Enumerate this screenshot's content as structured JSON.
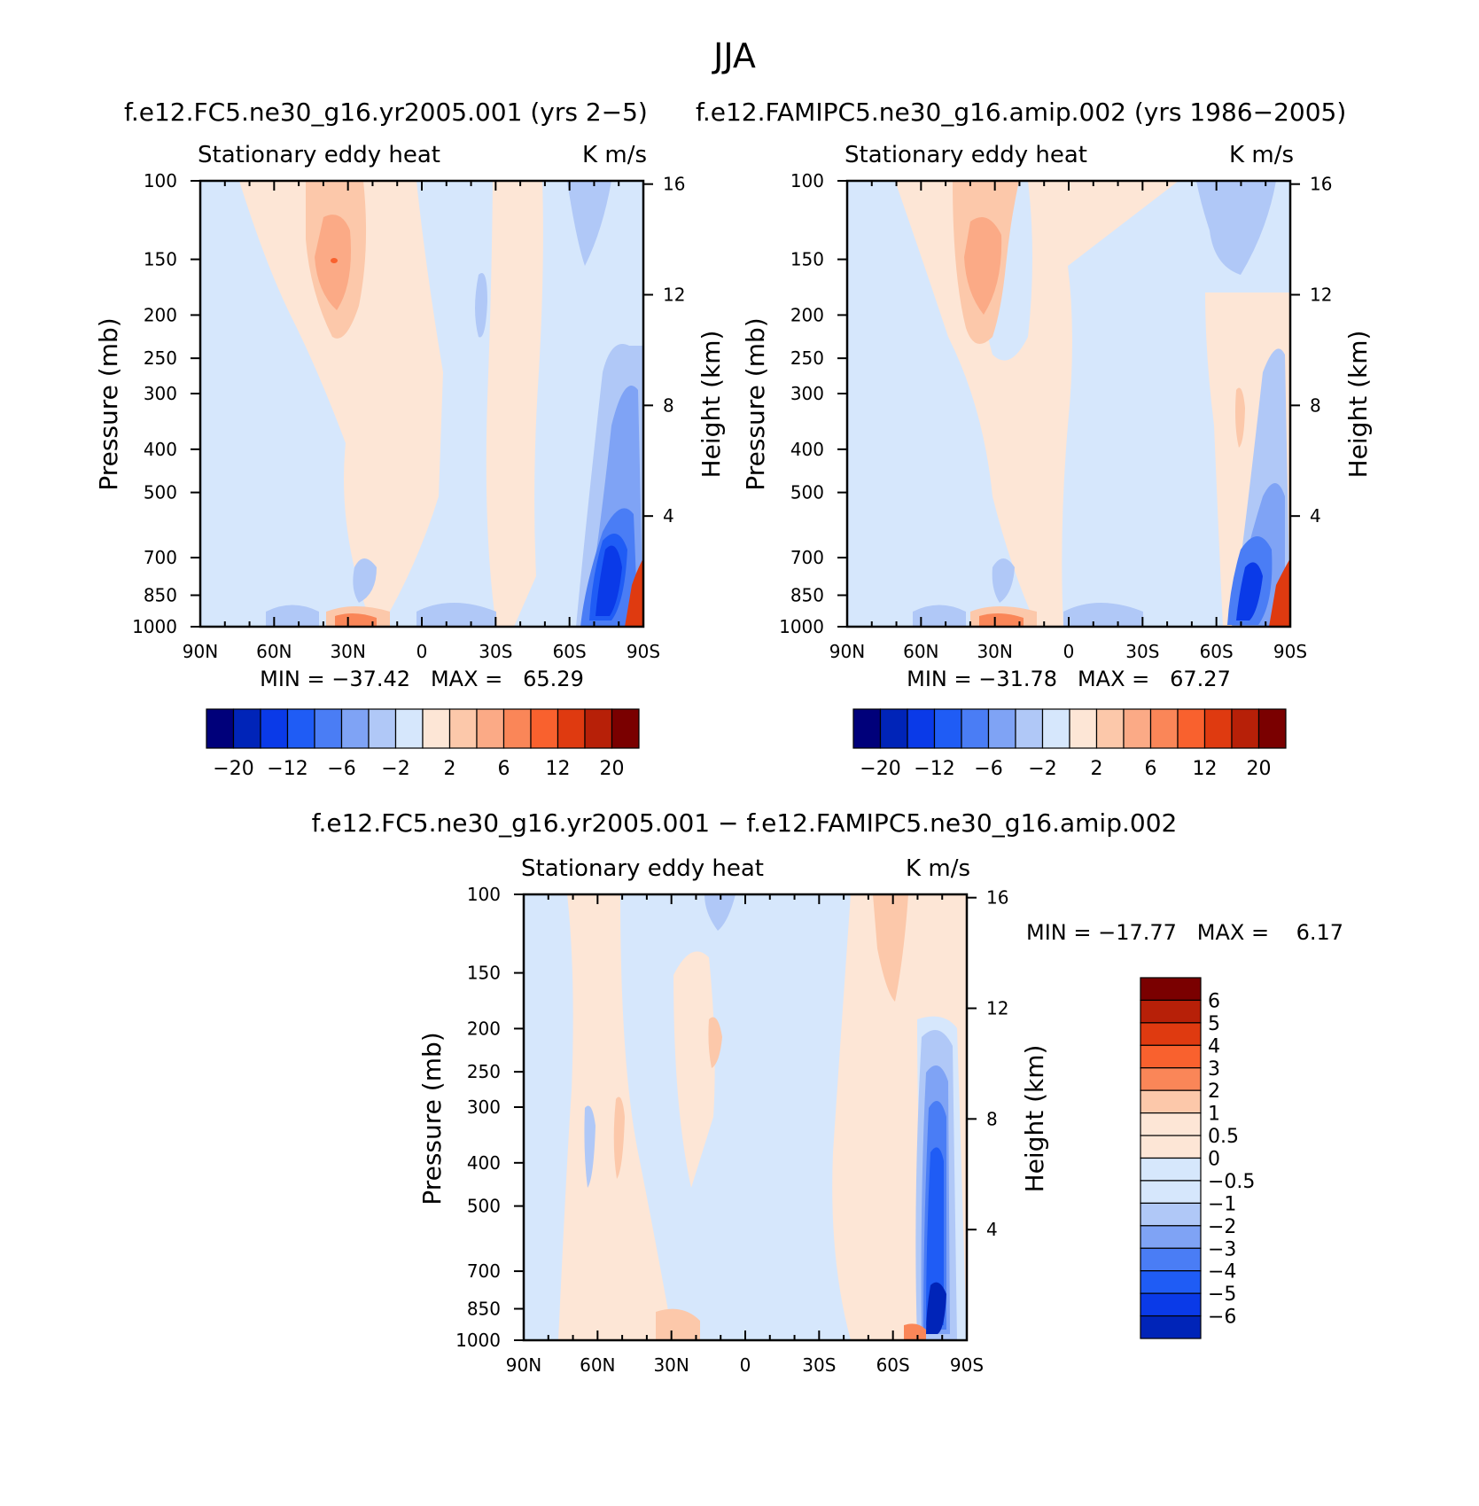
{
  "figure": {
    "title": "JJA",
    "field_name": "Stationary eddy heat",
    "units": "K m/s"
  },
  "colors": {
    "blue_red_16": [
      "#00007a",
      "#0024b8",
      "#0a3ae8",
      "#1f5cf5",
      "#4a7df5",
      "#7fa3f5",
      "#b0c8f7",
      "#d6e7fc",
      "#fde6d6",
      "#fcc8aa",
      "#fbaa86",
      "#fa8658",
      "#f9612e",
      "#df3a10",
      "#b72008",
      "#7a0000"
    ],
    "diff_14": [
      "#00007a",
      "#0024b8",
      "#0a3ae8",
      "#1f5cf5",
      "#4a7df5",
      "#7fa3f5",
      "#b0c8f7",
      "#d6e7fc",
      "#fde6d6",
      "#fcc8aa",
      "#fa8658",
      "#f9612e",
      "#df3a10",
      "#b72008",
      "#7a0000"
    ]
  },
  "chart_data": [
    {
      "type": "heatmap",
      "title": "f.e12.FC5.ne30_g16.yr2005.001 (yrs 2−5)",
      "field": "Stationary eddy heat",
      "units": "K m/s",
      "xlabel": "",
      "ylabel": "Pressure (mb)",
      "y2label": "Height (km)",
      "x_ticks": [
        "90N",
        "60N",
        "30N",
        "0",
        "30S",
        "60S",
        "90S"
      ],
      "x_range": [
        90,
        -90
      ],
      "y_ticks": [
        100,
        150,
        200,
        250,
        300,
        400,
        500,
        700,
        850,
        1000
      ],
      "y_range": [
        100,
        1000
      ],
      "y_scale": "log",
      "y2_ticks": [
        16,
        12,
        8,
        4
      ],
      "min_max_text": "MIN = −37.42   MAX =   65.29",
      "min": -37.42,
      "max": 65.29,
      "colorbar_labels": [
        "−20",
        "−12",
        "−6",
        "−2",
        "2",
        "6",
        "12",
        "20"
      ],
      "colorbar_levels": [
        -20,
        -16,
        -12,
        -8,
        -6,
        -4,
        -2,
        0,
        2,
        4,
        6,
        8,
        12,
        16,
        20
      ]
    },
    {
      "type": "heatmap",
      "title": "f.e12.FAMIPC5.ne30_g16.amip.002 (yrs 1986−2005)",
      "field": "Stationary eddy heat",
      "units": "K m/s",
      "xlabel": "",
      "ylabel": "Pressure (mb)",
      "y2label": "Height (km)",
      "x_ticks": [
        "90N",
        "60N",
        "30N",
        "0",
        "30S",
        "60S",
        "90S"
      ],
      "x_range": [
        90,
        -90
      ],
      "y_ticks": [
        100,
        150,
        200,
        250,
        300,
        400,
        500,
        700,
        850,
        1000
      ],
      "y_range": [
        100,
        1000
      ],
      "y_scale": "log",
      "y2_ticks": [
        16,
        12,
        8,
        4
      ],
      "min_max_text": "MIN = −31.78   MAX =   67.27",
      "min": -31.78,
      "max": 67.27,
      "colorbar_labels": [
        "−20",
        "−12",
        "−6",
        "−2",
        "2",
        "6",
        "12",
        "20"
      ],
      "colorbar_levels": [
        -20,
        -16,
        -12,
        -8,
        -6,
        -4,
        -2,
        0,
        2,
        4,
        6,
        8,
        12,
        16,
        20
      ]
    },
    {
      "type": "heatmap",
      "title": "f.e12.FC5.ne30_g16.yr2005.001 − f.e12.FAMIPC5.ne30_g16.amip.002",
      "field": "Stationary eddy heat",
      "units": "K m/s",
      "xlabel": "",
      "ylabel": "Pressure (mb)",
      "y2label": "Height (km)",
      "x_ticks": [
        "90N",
        "60N",
        "30N",
        "0",
        "30S",
        "60S",
        "90S"
      ],
      "x_range": [
        90,
        -90
      ],
      "y_ticks": [
        100,
        150,
        200,
        250,
        300,
        400,
        500,
        700,
        850,
        1000
      ],
      "y_range": [
        100,
        1000
      ],
      "y_scale": "log",
      "y2_ticks": [
        16,
        12,
        8,
        4
      ],
      "min_max_text": "MIN = −17.77   MAX =    6.17",
      "min": -17.77,
      "max": 6.17,
      "colorbar_labels": [
        "6",
        "5",
        "4",
        "3",
        "2",
        "1",
        "0.5",
        "0",
        "−0.5",
        "−1",
        "−2",
        "−3",
        "−4",
        "−5",
        "−6"
      ],
      "colorbar_levels": [
        -6,
        -5,
        -4,
        -3,
        -2,
        -1,
        -0.5,
        0,
        0.5,
        1,
        2,
        3,
        4,
        5,
        6
      ]
    }
  ]
}
